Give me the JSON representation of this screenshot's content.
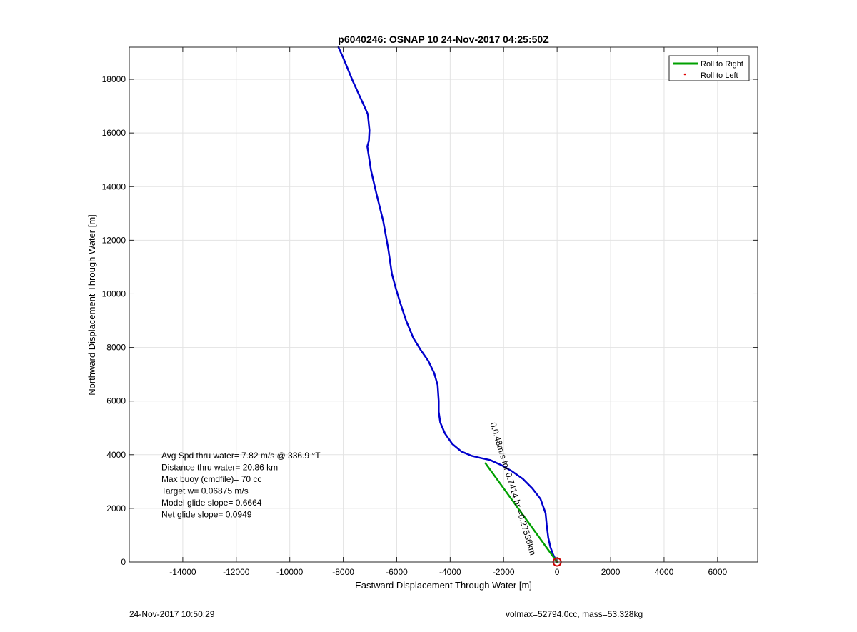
{
  "chart_data": {
    "type": "line",
    "title": "p6040246: OSNAP 10 24-Nov-2017 04:25:50Z",
    "xlabel": "Eastward Displacement Through Water [m]",
    "ylabel": "Northward Displacement Through Water [m]",
    "xlim": [
      -16000,
      7500
    ],
    "ylim": [
      0,
      19200
    ],
    "xticks": [
      -14000,
      -12000,
      -10000,
      -8000,
      -6000,
      -4000,
      -2000,
      0,
      2000,
      4000,
      6000
    ],
    "yticks": [
      0,
      2000,
      4000,
      6000,
      8000,
      10000,
      12000,
      14000,
      16000,
      18000
    ],
    "xtick_labels": [
      "-14000",
      "-12000",
      "-10000",
      "-8000",
      "-6000",
      "-4000",
      "-2000",
      "0",
      "2000",
      "4000",
      "6000"
    ],
    "ytick_labels": [
      "0",
      "2000",
      "4000",
      "6000",
      "8000",
      "10000",
      "12000",
      "14000",
      "16000",
      "18000"
    ],
    "grid": true,
    "legend_position": "top-right",
    "legend": [
      {
        "label": "Roll to Right",
        "style": "line",
        "color": "#00a000"
      },
      {
        "label": "Roll to Left",
        "style": "dot",
        "color": "#e00000"
      }
    ],
    "series": [
      {
        "color": "#0000cc",
        "x": [
          -8180,
          -8000,
          -7650,
          -7260,
          -7080,
          -7020,
          -7040,
          -7100,
          -6960,
          -6750,
          -6500,
          -6320,
          -6180,
          -6030,
          -5880,
          -5650,
          -5380,
          -5100,
          -4820,
          -4600,
          -4470,
          -4430,
          -4430,
          -4370,
          -4200,
          -3920,
          -3580,
          -3200,
          -2870,
          -2500,
          -2100,
          -1680,
          -1280,
          -930,
          -620,
          -430,
          -390,
          -330,
          -250,
          -160,
          -70,
          0
        ],
        "y": [
          19200,
          18800,
          17950,
          17100,
          16700,
          16100,
          15700,
          15500,
          14600,
          13700,
          12700,
          11700,
          10750,
          10200,
          9700,
          9000,
          8350,
          7900,
          7500,
          7050,
          6600,
          6000,
          5600,
          5200,
          4800,
          4400,
          4120,
          3960,
          3880,
          3800,
          3620,
          3380,
          3100,
          2750,
          2350,
          1820,
          1400,
          900,
          550,
          300,
          120,
          0
        ]
      },
      {
        "color": "#00a000",
        "x": [
          -2680,
          0
        ],
        "y": [
          3680,
          0
        ]
      }
    ],
    "markers": [
      {
        "x": 0,
        "y": 0,
        "shape": "circle",
        "color": "#cc0000"
      }
    ],
    "line_annotation": {
      "text": "0.0.48m/s for 0.7414 hr =0.27536km",
      "x": -1750,
      "y": 2700,
      "rotation_deg": 73
    },
    "text_annotation": [
      "Avg Spd thru water=  7.82 m/s @ 336.9 °T",
      "Distance thru water= 20.86 km",
      "Max buoy (cmdfile)= 70 cc",
      "Target w= 0.06875 m/s",
      "Model glide slope= 0.6664",
      "Net glide slope= 0.0949"
    ]
  },
  "footer": {
    "left": "24-Nov-2017 10:50:29",
    "right": "volmax=52794.0cc, mass=53.328kg"
  }
}
